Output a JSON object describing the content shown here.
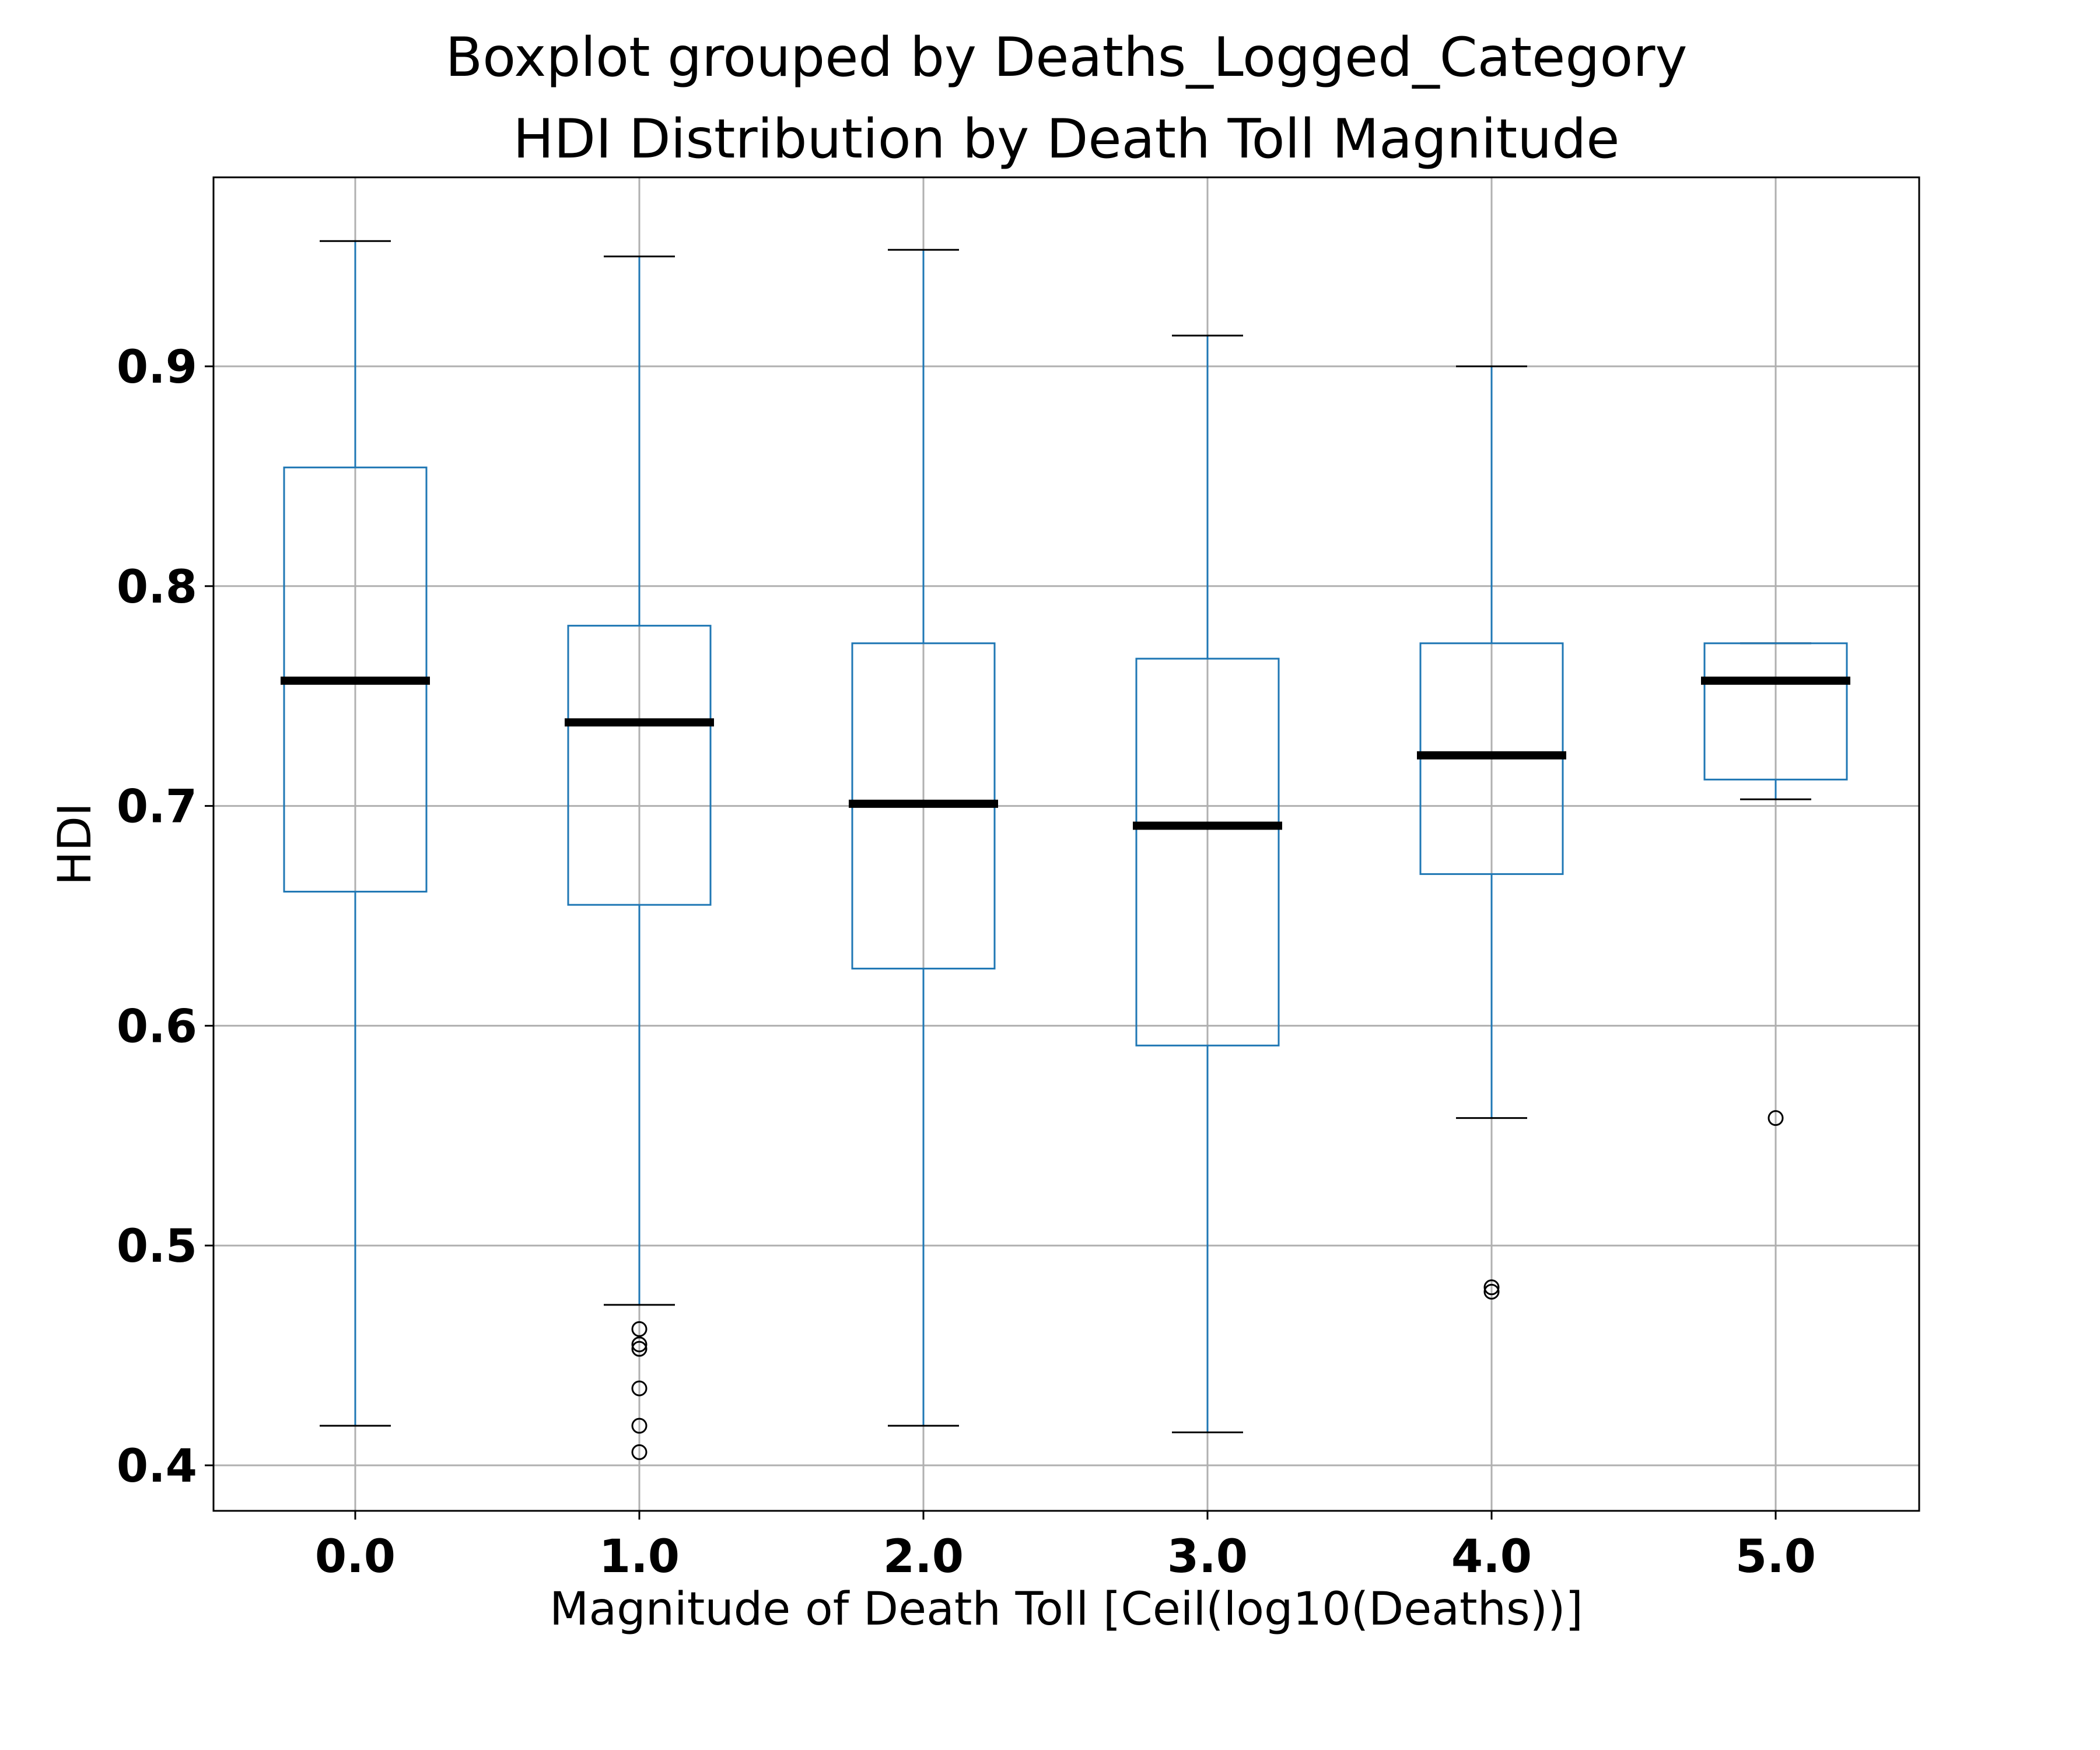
{
  "chart_data": {
    "type": "box",
    "title": "Boxplot grouped by Deaths_Logged_Category",
    "subtitle": "HDI Distribution by Death Toll Magnitude",
    "xlabel": "Magnitude of Death Toll [Ceil(log10(Deaths))]",
    "ylabel": "HDI",
    "categories": [
      "0.0",
      "1.0",
      "2.0",
      "3.0",
      "4.0",
      "5.0"
    ],
    "yticks": [
      "0.4",
      "0.5",
      "0.6",
      "0.7",
      "0.8",
      "0.9"
    ],
    "ylim": [
      0.38,
      0.985
    ],
    "grid": true,
    "legend": "none",
    "box_color": "#1f77b4",
    "median_color": "#000000",
    "series": [
      {
        "category": "0.0",
        "whisker_low": 0.418,
        "q1": 0.661,
        "median": 0.757,
        "q3": 0.854,
        "whisker_high": 0.957,
        "outliers": []
      },
      {
        "category": "1.0",
        "whisker_low": 0.473,
        "q1": 0.655,
        "median": 0.738,
        "q3": 0.782,
        "whisker_high": 0.95,
        "outliers": [
          0.462,
          0.455,
          0.453,
          0.435,
          0.418,
          0.406
        ]
      },
      {
        "category": "2.0",
        "whisker_low": 0.418,
        "q1": 0.626,
        "median": 0.701,
        "q3": 0.774,
        "whisker_high": 0.953,
        "outliers": []
      },
      {
        "category": "3.0",
        "whisker_low": 0.415,
        "q1": 0.591,
        "median": 0.691,
        "q3": 0.767,
        "whisker_high": 0.914,
        "outliers": []
      },
      {
        "category": "4.0",
        "whisker_low": 0.558,
        "q1": 0.669,
        "median": 0.723,
        "q3": 0.774,
        "whisker_high": 0.9,
        "outliers": [
          0.481,
          0.479
        ]
      },
      {
        "category": "5.0",
        "whisker_low": 0.703,
        "q1": 0.712,
        "median": 0.757,
        "q3": 0.774,
        "whisker_high": 0.774,
        "outliers": [
          0.558
        ]
      }
    ]
  }
}
